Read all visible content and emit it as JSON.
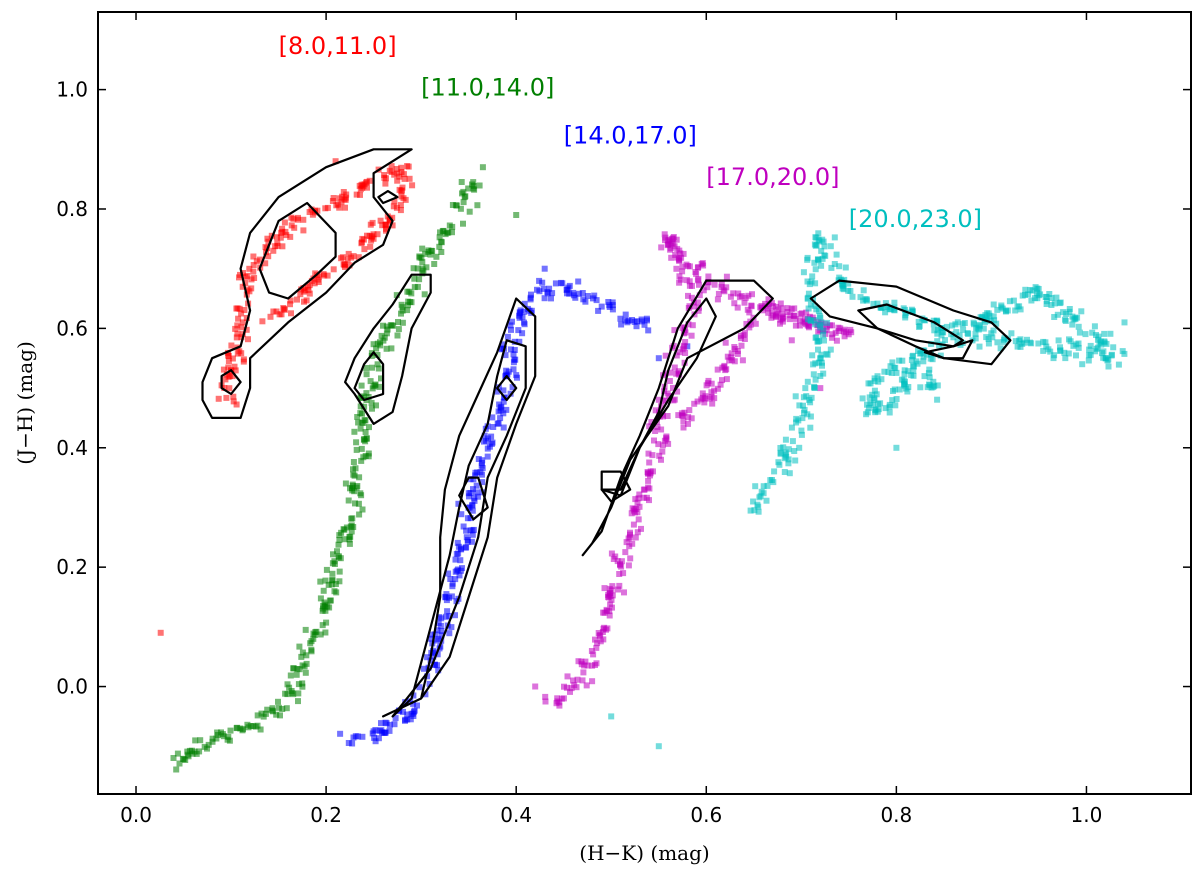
{
  "chart_data": {
    "type": "scatter",
    "title": "",
    "xlabel": "(H−K) (mag)",
    "ylabel": "(J−H) (mag)",
    "xlim": [
      -0.04,
      1.11
    ],
    "ylim": [
      -0.18,
      1.13
    ],
    "xticks": [
      0.0,
      0.2,
      0.4,
      0.6,
      0.8,
      1.0
    ],
    "xtick_labels": [
      "0.0",
      "0.2",
      "0.4",
      "0.6",
      "0.8",
      "1.0"
    ],
    "yticks": [
      0.0,
      0.2,
      0.4,
      0.6,
      0.8,
      1.0
    ],
    "ytick_labels": [
      "0.0",
      "0.2",
      "0.4",
      "0.6",
      "0.8",
      "1.0"
    ],
    "grid": false,
    "series": [
      {
        "name": "[8.0,11.0]",
        "color": "#ff0000",
        "label_pos": [
          0.15,
          1.06
        ],
        "path": [
          [
            0.1,
            0.48
          ],
          [
            0.09,
            0.5
          ],
          [
            0.1,
            0.53
          ],
          [
            0.11,
            0.58
          ],
          [
            0.11,
            0.64
          ],
          [
            0.12,
            0.7
          ],
          [
            0.15,
            0.75
          ],
          [
            0.18,
            0.79
          ],
          [
            0.22,
            0.82
          ],
          [
            0.25,
            0.85
          ],
          [
            0.28,
            0.87
          ],
          [
            0.28,
            0.82
          ],
          [
            0.26,
            0.77
          ],
          [
            0.23,
            0.72
          ],
          [
            0.19,
            0.68
          ],
          [
            0.16,
            0.64
          ],
          [
            0.14,
            0.62
          ]
        ],
        "outliers": [
          [
            0.026,
            0.09
          ],
          [
            0.21,
            0.88
          ],
          [
            0.25,
            0.75
          ]
        ],
        "contours": [
          [
            [
              0.07,
              0.48
            ],
            [
              0.08,
              0.45
            ],
            [
              0.11,
              0.45
            ],
            [
              0.12,
              0.5
            ],
            [
              0.12,
              0.55
            ],
            [
              0.16,
              0.61
            ],
            [
              0.2,
              0.66
            ],
            [
              0.23,
              0.71
            ],
            [
              0.26,
              0.74
            ],
            [
              0.27,
              0.78
            ],
            [
              0.25,
              0.82
            ],
            [
              0.25,
              0.86
            ],
            [
              0.29,
              0.9
            ],
            [
              0.25,
              0.9
            ],
            [
              0.2,
              0.87
            ],
            [
              0.15,
              0.82
            ],
            [
              0.12,
              0.76
            ],
            [
              0.11,
              0.7
            ],
            [
              0.12,
              0.63
            ],
            [
              0.11,
              0.57
            ],
            [
              0.08,
              0.55
            ],
            [
              0.07,
              0.51
            ]
          ],
          [
            [
              0.13,
              0.7
            ],
            [
              0.14,
              0.66
            ],
            [
              0.16,
              0.65
            ],
            [
              0.19,
              0.69
            ],
            [
              0.21,
              0.72
            ],
            [
              0.21,
              0.76
            ],
            [
              0.18,
              0.81
            ],
            [
              0.15,
              0.78
            ],
            [
              0.14,
              0.74
            ]
          ],
          [
            [
              0.09,
              0.5
            ],
            [
              0.1,
              0.49
            ],
            [
              0.11,
              0.51
            ],
            [
              0.1,
              0.53
            ],
            [
              0.09,
              0.52
            ]
          ],
          [
            [
              0.255,
              0.82
            ],
            [
              0.26,
              0.81
            ],
            [
              0.275,
              0.82
            ],
            [
              0.265,
              0.83
            ]
          ]
        ]
      },
      {
        "name": "[11.0,14.0]",
        "color": "#007f00",
        "label_pos": [
          0.3,
          0.99
        ],
        "path": [
          [
            0.035,
            -0.13
          ],
          [
            0.07,
            -0.1
          ],
          [
            0.11,
            -0.07
          ],
          [
            0.15,
            -0.04
          ],
          [
            0.17,
            0.0
          ],
          [
            0.18,
            0.05
          ],
          [
            0.19,
            0.1
          ],
          [
            0.2,
            0.15
          ],
          [
            0.21,
            0.2
          ],
          [
            0.22,
            0.25
          ],
          [
            0.23,
            0.3
          ],
          [
            0.23,
            0.35
          ],
          [
            0.24,
            0.4
          ],
          [
            0.24,
            0.45
          ],
          [
            0.245,
            0.5
          ],
          [
            0.25,
            0.55
          ],
          [
            0.27,
            0.6
          ],
          [
            0.29,
            0.65
          ],
          [
            0.3,
            0.7
          ],
          [
            0.32,
            0.75
          ],
          [
            0.34,
            0.8
          ],
          [
            0.36,
            0.85
          ]
        ],
        "outliers": [
          [
            0.365,
            0.87
          ],
          [
            0.4,
            0.79
          ]
        ],
        "contours": [
          [
            [
              0.23,
              0.49
            ],
            [
              0.25,
              0.44
            ],
            [
              0.27,
              0.46
            ],
            [
              0.28,
              0.52
            ],
            [
              0.29,
              0.6
            ],
            [
              0.31,
              0.66
            ],
            [
              0.31,
              0.69
            ],
            [
              0.29,
              0.69
            ],
            [
              0.27,
              0.64
            ],
            [
              0.25,
              0.6
            ],
            [
              0.23,
              0.55
            ],
            [
              0.22,
              0.51
            ]
          ],
          [
            [
              0.23,
              0.5
            ],
            [
              0.24,
              0.48
            ],
            [
              0.26,
              0.49
            ],
            [
              0.26,
              0.54
            ],
            [
              0.25,
              0.56
            ],
            [
              0.24,
              0.54
            ]
          ]
        ]
      },
      {
        "name": "[14.0,17.0]",
        "color": "#0000ff",
        "label_pos": [
          0.45,
          0.91
        ],
        "path": [
          [
            0.22,
            -0.1
          ],
          [
            0.26,
            -0.07
          ],
          [
            0.29,
            -0.04
          ],
          [
            0.3,
            0.0
          ],
          [
            0.31,
            0.05
          ],
          [
            0.32,
            0.1
          ],
          [
            0.33,
            0.15
          ],
          [
            0.34,
            0.2
          ],
          [
            0.345,
            0.25
          ],
          [
            0.35,
            0.3
          ],
          [
            0.36,
            0.35
          ],
          [
            0.37,
            0.4
          ],
          [
            0.38,
            0.45
          ],
          [
            0.39,
            0.5
          ],
          [
            0.395,
            0.55
          ],
          [
            0.4,
            0.6
          ],
          [
            0.41,
            0.64
          ],
          [
            0.42,
            0.66
          ],
          [
            0.45,
            0.67
          ],
          [
            0.5,
            0.63
          ],
          [
            0.54,
            0.6
          ]
        ],
        "outliers": [
          [
            0.43,
            0.7
          ],
          [
            0.55,
            0.55
          ],
          [
            0.58,
            0.57
          ]
        ],
        "contours": [
          [
            [
              0.26,
              -0.05
            ],
            [
              0.3,
              -0.02
            ],
            [
              0.31,
              0.05
            ],
            [
              0.32,
              0.15
            ],
            [
              0.32,
              0.25
            ],
            [
              0.325,
              0.33
            ],
            [
              0.34,
              0.42
            ],
            [
              0.36,
              0.49
            ],
            [
              0.38,
              0.56
            ],
            [
              0.4,
              0.65
            ],
            [
              0.42,
              0.62
            ],
            [
              0.42,
              0.52
            ],
            [
              0.4,
              0.44
            ],
            [
              0.38,
              0.35
            ],
            [
              0.37,
              0.25
            ],
            [
              0.35,
              0.15
            ],
            [
              0.33,
              0.05
            ],
            [
              0.3,
              -0.02
            ]
          ],
          [
            [
              0.27,
              -0.05
            ],
            [
              0.29,
              -0.02
            ],
            [
              0.31,
              0.1
            ],
            [
              0.33,
              0.22
            ],
            [
              0.34,
              0.3
            ],
            [
              0.35,
              0.37
            ],
            [
              0.37,
              0.44
            ],
            [
              0.38,
              0.52
            ],
            [
              0.39,
              0.58
            ],
            [
              0.41,
              0.57
            ],
            [
              0.41,
              0.5
            ],
            [
              0.39,
              0.42
            ],
            [
              0.37,
              0.35
            ],
            [
              0.36,
              0.25
            ],
            [
              0.34,
              0.15
            ],
            [
              0.31,
              0.03
            ]
          ],
          [
            [
              0.34,
              0.32
            ],
            [
              0.355,
              0.28
            ],
            [
              0.37,
              0.3
            ],
            [
              0.36,
              0.35
            ],
            [
              0.35,
              0.35
            ]
          ],
          [
            [
              0.38,
              0.5
            ],
            [
              0.39,
              0.48
            ],
            [
              0.4,
              0.5
            ],
            [
              0.39,
              0.52
            ]
          ]
        ]
      },
      {
        "name": "[17.0,20.0]",
        "color": "#bf00bf",
        "label_pos": [
          0.6,
          0.84
        ],
        "path": [
          [
            0.435,
            -0.03
          ],
          [
            0.46,
            0.0
          ],
          [
            0.48,
            0.05
          ],
          [
            0.49,
            0.1
          ],
          [
            0.5,
            0.15
          ],
          [
            0.51,
            0.2
          ],
          [
            0.52,
            0.25
          ],
          [
            0.53,
            0.3
          ],
          [
            0.54,
            0.35
          ],
          [
            0.55,
            0.4
          ],
          [
            0.55,
            0.45
          ],
          [
            0.56,
            0.5
          ],
          [
            0.57,
            0.55
          ],
          [
            0.58,
            0.6
          ],
          [
            0.59,
            0.65
          ],
          [
            0.56,
            0.75
          ],
          [
            0.6,
            0.68
          ],
          [
            0.65,
            0.64
          ],
          [
            0.7,
            0.61
          ],
          [
            0.75,
            0.59
          ],
          [
            0.66,
            0.64
          ],
          [
            0.6,
            0.48
          ],
          [
            0.57,
            0.44
          ]
        ],
        "outliers": [
          [
            0.42,
            0.0
          ],
          [
            0.69,
            0.58
          ],
          [
            0.72,
            0.5
          ]
        ],
        "contours": [
          [
            [
              0.47,
              0.22
            ],
            [
              0.49,
              0.26
            ],
            [
              0.51,
              0.35
            ],
            [
              0.53,
              0.42
            ],
            [
              0.55,
              0.5
            ],
            [
              0.57,
              0.6
            ],
            [
              0.6,
              0.68
            ],
            [
              0.65,
              0.68
            ],
            [
              0.67,
              0.65
            ],
            [
              0.64,
              0.6
            ],
            [
              0.58,
              0.55
            ],
            [
              0.56,
              0.47
            ],
            [
              0.52,
              0.38
            ],
            [
              0.5,
              0.3
            ],
            [
              0.48,
              0.24
            ]
          ],
          [
            [
              0.49,
              0.33
            ],
            [
              0.51,
              0.32
            ],
            [
              0.53,
              0.4
            ],
            [
              0.55,
              0.46
            ],
            [
              0.56,
              0.53
            ],
            [
              0.58,
              0.61
            ],
            [
              0.6,
              0.65
            ],
            [
              0.61,
              0.62
            ],
            [
              0.59,
              0.55
            ],
            [
              0.56,
              0.48
            ],
            [
              0.53,
              0.4
            ],
            [
              0.51,
              0.33
            ]
          ],
          [
            [
              0.49,
              0.33
            ],
            [
              0.5,
              0.31
            ],
            [
              0.52,
              0.33
            ],
            [
              0.51,
              0.36
            ],
            [
              0.49,
              0.36
            ]
          ]
        ]
      },
      {
        "name": "[20.0,23.0]",
        "color": "#00bfbf",
        "label_pos": [
          0.75,
          0.77
        ],
        "path": [
          [
            0.65,
            0.3
          ],
          [
            0.67,
            0.35
          ],
          [
            0.69,
            0.4
          ],
          [
            0.7,
            0.45
          ],
          [
            0.71,
            0.5
          ],
          [
            0.72,
            0.55
          ],
          [
            0.72,
            0.6
          ],
          [
            0.71,
            0.68
          ],
          [
            0.72,
            0.75
          ],
          [
            0.75,
            0.66
          ],
          [
            0.8,
            0.63
          ],
          [
            0.85,
            0.6
          ],
          [
            0.9,
            0.58
          ],
          [
            0.95,
            0.57
          ],
          [
            1.0,
            0.56
          ],
          [
            1.04,
            0.55
          ],
          [
            0.95,
            0.66
          ],
          [
            0.78,
            0.52
          ],
          [
            0.77,
            0.45
          ],
          [
            0.8,
            0.48
          ],
          [
            0.82,
            0.55
          ],
          [
            0.84,
            0.49
          ]
        ],
        "outliers": [
          [
            0.5,
            -0.05
          ],
          [
            0.55,
            -0.1
          ],
          [
            1.04,
            0.61
          ],
          [
            0.8,
            0.4
          ]
        ],
        "contours": [
          [
            [
              0.71,
              0.65
            ],
            [
              0.74,
              0.68
            ],
            [
              0.8,
              0.67
            ],
            [
              0.86,
              0.63
            ],
            [
              0.9,
              0.61
            ],
            [
              0.92,
              0.58
            ],
            [
              0.9,
              0.54
            ],
            [
              0.85,
              0.55
            ],
            [
              0.82,
              0.57
            ],
            [
              0.78,
              0.6
            ],
            [
              0.73,
              0.62
            ]
          ],
          [
            [
              0.76,
              0.63
            ],
            [
              0.79,
              0.64
            ],
            [
              0.84,
              0.61
            ],
            [
              0.87,
              0.58
            ],
            [
              0.86,
              0.57
            ],
            [
              0.82,
              0.58
            ],
            [
              0.78,
              0.6
            ]
          ],
          [
            [
              0.83,
              0.56
            ],
            [
              0.86,
              0.57
            ],
            [
              0.88,
              0.58
            ],
            [
              0.87,
              0.55
            ],
            [
              0.85,
              0.55
            ]
          ]
        ]
      }
    ]
  }
}
